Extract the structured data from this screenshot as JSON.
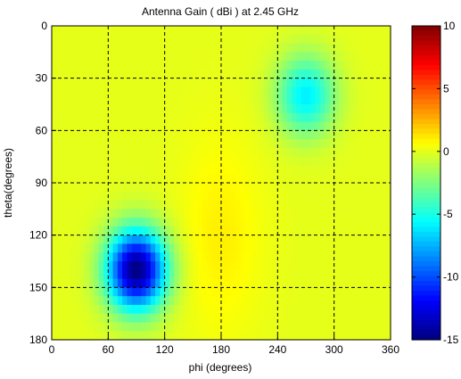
{
  "chart_data": {
    "type": "heatmap",
    "title": "Antenna Gain ( dBi ) at 2.45 GHz",
    "xlabel": "phi (degrees)",
    "ylabel": "theta(degrees)",
    "xlim": [
      0,
      360
    ],
    "ylim": [
      0,
      180
    ],
    "y_reversed": true,
    "xticks": [
      0,
      60,
      120,
      180,
      240,
      300,
      360
    ],
    "yticks": [
      0,
      30,
      60,
      90,
      120,
      150,
      180
    ],
    "grid": true,
    "grid_style": "dashed",
    "colormap": "jet",
    "colorbar": {
      "range": [
        -15,
        10
      ],
      "ticks": [
        10,
        5,
        0,
        -5,
        -10,
        -15
      ],
      "tick_labels": [
        "10",
        "5",
        "0",
        "-5",
        "-10",
        "-15"
      ]
    },
    "grid_resolution_deg": 5,
    "background_level_dbi": 0,
    "features": [
      {
        "kind": "null",
        "phi": 90,
        "theta": 140,
        "peak_dbi": -15
      },
      {
        "kind": "null",
        "phi": 270,
        "theta": 40,
        "peak_dbi": -6
      },
      {
        "kind": "ridge",
        "phi": 180,
        "theta": 120,
        "peak_dbi": 1
      }
    ]
  }
}
